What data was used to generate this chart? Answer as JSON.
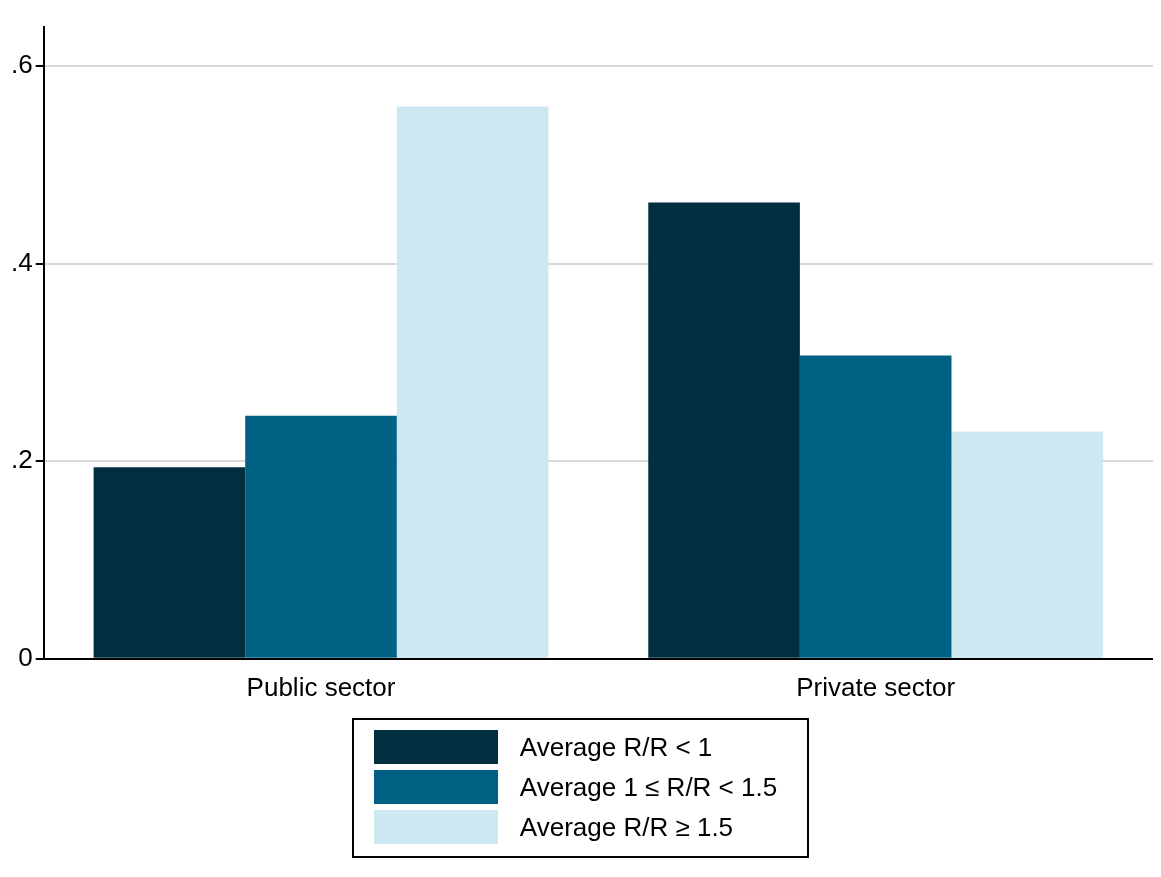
{
  "chart_data": {
    "type": "bar",
    "categories": [
      "Public sector",
      "Private sector"
    ],
    "series": [
      {
        "name": "Average R/R < 1",
        "color": "#022f3f",
        "values": [
          0.194,
          0.462
        ]
      },
      {
        "name": "Average 1 ≤ R/R < 1.5",
        "color": "#006185",
        "values": [
          0.246,
          0.307
        ]
      },
      {
        "name": "Average R/R ≥ 1.5",
        "color": "#cde8f1",
        "values": [
          0.559,
          0.23
        ]
      }
    ],
    "ylim": [
      0,
      0.64
    ],
    "yticks": [
      0,
      {
        "value": 0.2,
        "label": ".2"
      },
      {
        "value": 0.4,
        "label": ".4"
      },
      {
        "value": 0.6,
        "label": ".6"
      }
    ],
    "grid": "y",
    "legend": "bottom"
  }
}
